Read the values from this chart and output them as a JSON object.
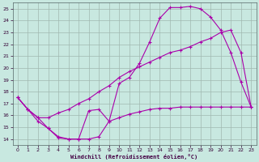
{
  "xlabel": "Windchill (Refroidissement éolien,°C)",
  "background_color": "#c8e8e0",
  "grid_color": "#a0b8b0",
  "line_color": "#aa00aa",
  "xlim": [
    -0.5,
    23.5
  ],
  "ylim": [
    13.5,
    25.5
  ],
  "xticks": [
    0,
    1,
    2,
    3,
    4,
    5,
    6,
    7,
    8,
    9,
    10,
    11,
    12,
    13,
    14,
    15,
    16,
    17,
    18,
    19,
    20,
    21,
    22,
    23
  ],
  "yticks": [
    14,
    15,
    16,
    17,
    18,
    19,
    20,
    21,
    22,
    23,
    24,
    25
  ],
  "line1_x": [
    0,
    1,
    2,
    3,
    4,
    5,
    6,
    7,
    8,
    9,
    10,
    11,
    12,
    13,
    14,
    15,
    16,
    17,
    18,
    19,
    20,
    21,
    22,
    23
  ],
  "line1_y": [
    17.5,
    16.5,
    15.8,
    14.9,
    14.1,
    14.0,
    14.0,
    14.0,
    14.2,
    15.5,
    18.7,
    19.2,
    20.4,
    22.2,
    24.2,
    25.1,
    25.1,
    25.2,
    25.0,
    24.3,
    23.2,
    21.3,
    18.8,
    16.7
  ],
  "line2_x": [
    0,
    1,
    2,
    3,
    4,
    5,
    6,
    7,
    8,
    9,
    10,
    11,
    12,
    13,
    14,
    15,
    16,
    17,
    18,
    19,
    20,
    21,
    22,
    23
  ],
  "line2_y": [
    17.5,
    16.5,
    15.8,
    15.8,
    16.2,
    16.5,
    17.0,
    17.4,
    18.0,
    18.5,
    19.2,
    19.7,
    20.1,
    20.5,
    20.9,
    21.3,
    21.5,
    21.8,
    22.2,
    22.5,
    23.0,
    23.2,
    21.3,
    16.7
  ],
  "line3_x": [
    0,
    1,
    2,
    3,
    4,
    5,
    6,
    7,
    8,
    9,
    10,
    11,
    12,
    13,
    14,
    15,
    16,
    17,
    18,
    19,
    20,
    21,
    22,
    23
  ],
  "line3_y": [
    17.5,
    16.5,
    15.5,
    14.9,
    14.2,
    14.0,
    14.0,
    16.4,
    16.5,
    15.5,
    15.8,
    16.1,
    16.3,
    16.5,
    16.6,
    16.6,
    16.7,
    16.7,
    16.7,
    16.7,
    16.7,
    16.7,
    16.7,
    16.7
  ]
}
